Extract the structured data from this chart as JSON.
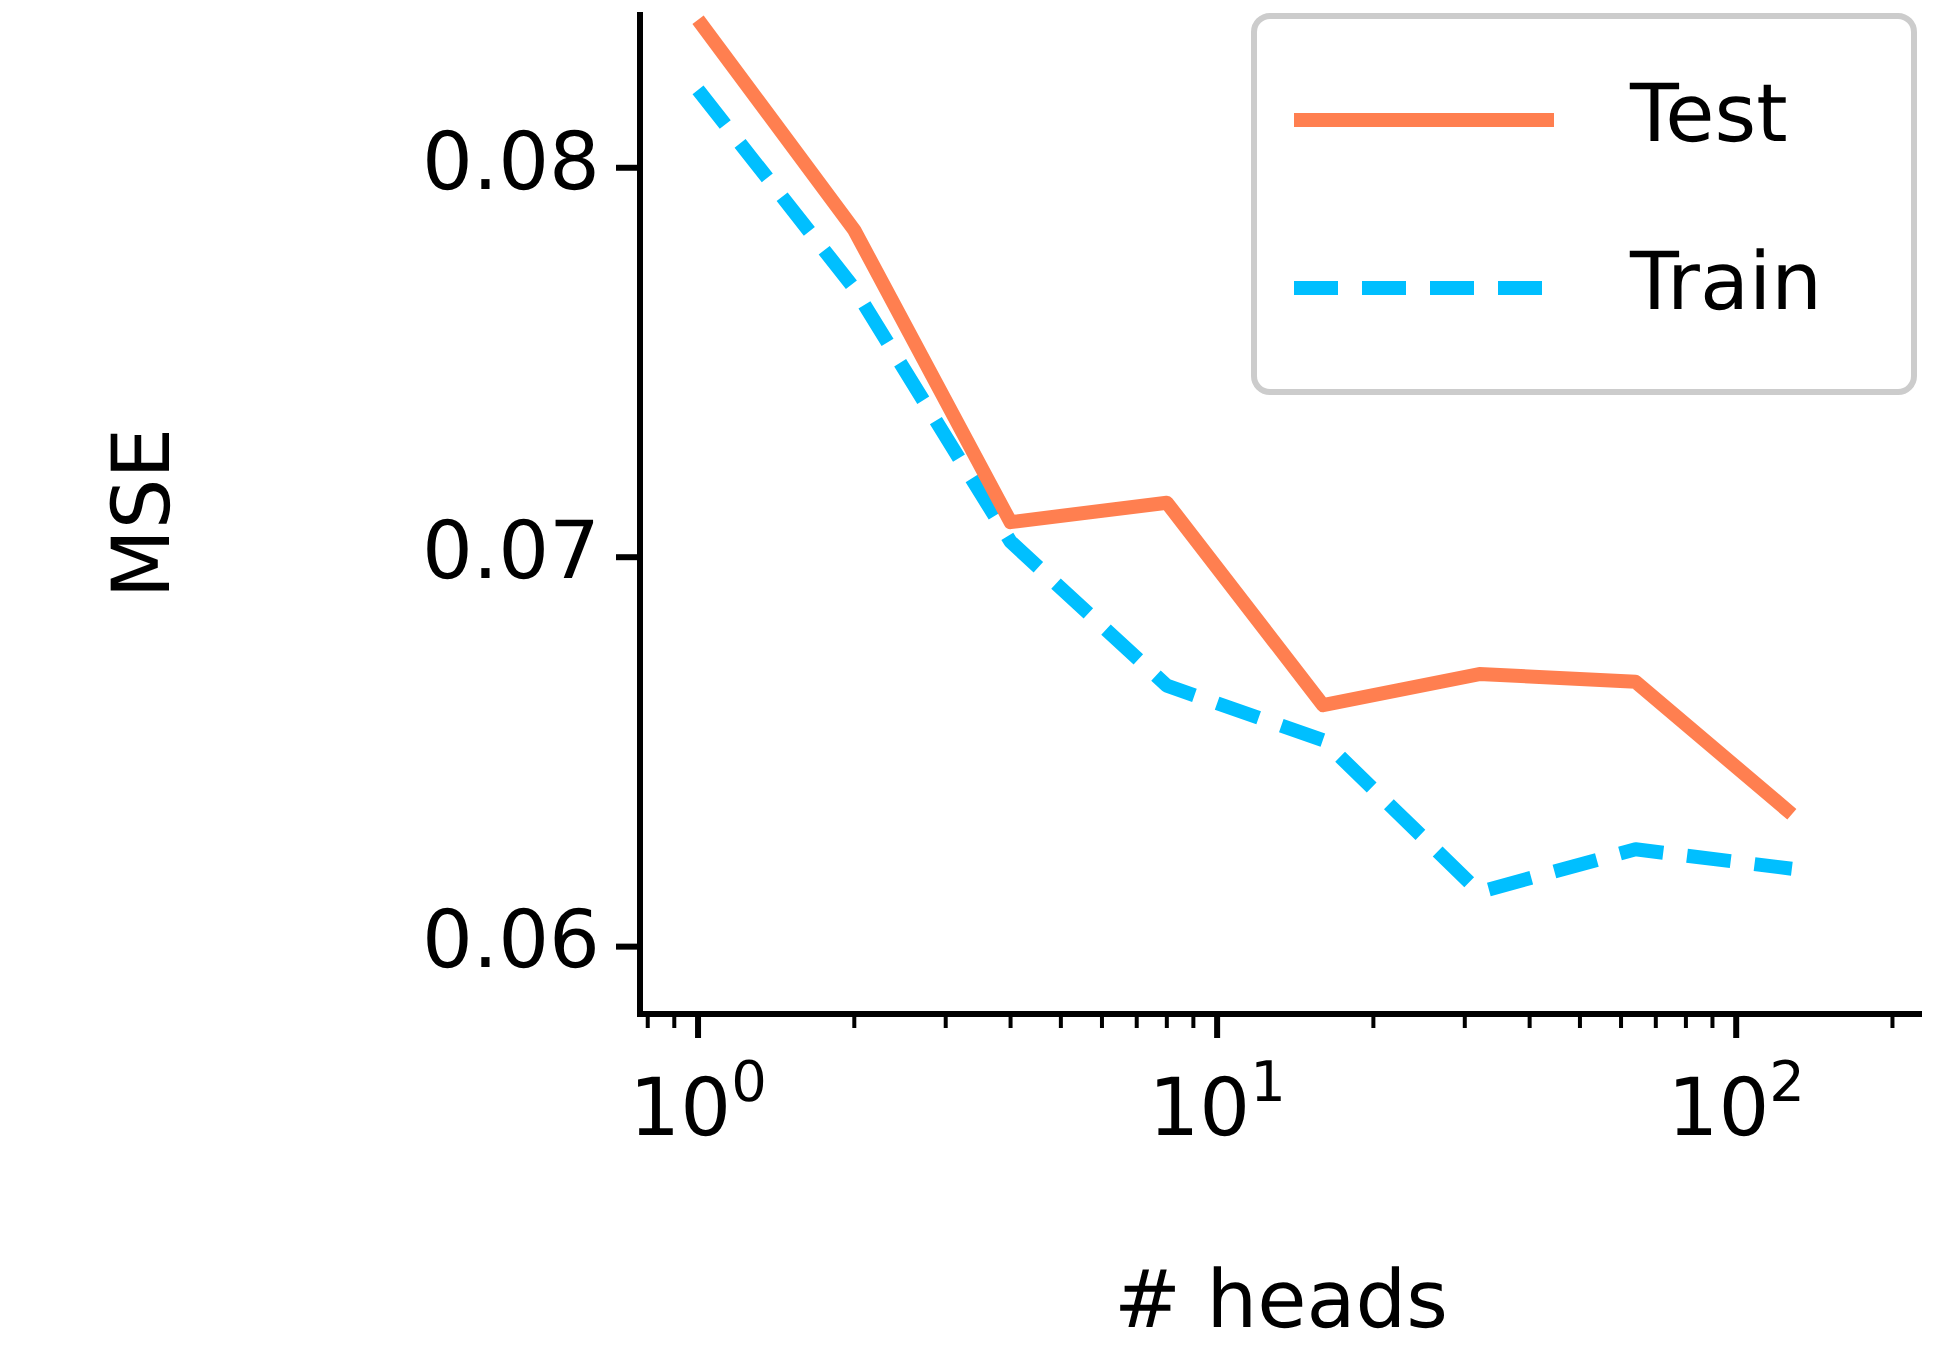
{
  "chart_data": {
    "type": "line",
    "xlabel": "# heads",
    "ylabel": "MSE",
    "x": [
      1,
      2,
      4,
      8,
      16,
      32,
      64,
      128
    ],
    "series": [
      {
        "name": "Test",
        "color": "#ff7f50",
        "line_style": "solid",
        "values": [
          0.0838,
          0.0784,
          0.0709,
          0.0714,
          0.0662,
          0.067,
          0.0668,
          0.0634
        ]
      },
      {
        "name": "Train",
        "color": "#00bfff",
        "line_style": "dashed",
        "values": [
          0.082,
          0.0769,
          0.0704,
          0.0667,
          0.0653,
          0.0614,
          0.0625,
          0.062
        ]
      }
    ],
    "log": "x",
    "xlim": [
      0.773,
      228
    ],
    "ylim": [
      0.05827,
      0.084
    ],
    "xticks": [
      {
        "value": 0.8,
        "label": null
      },
      {
        "value": 0.9,
        "label": null
      },
      {
        "value": 1,
        "label": "10$^{0}$"
      },
      {
        "value": 2,
        "label": null
      },
      {
        "value": 3,
        "label": null
      },
      {
        "value": 4,
        "label": null
      },
      {
        "value": 5,
        "label": null
      },
      {
        "value": 6,
        "label": null
      },
      {
        "value": 7,
        "label": null
      },
      {
        "value": 8,
        "label": null
      },
      {
        "value": 9,
        "label": null
      },
      {
        "value": 10,
        "label": "10$^{1}$"
      },
      {
        "value": 20,
        "label": null
      },
      {
        "value": 30,
        "label": null
      },
      {
        "value": 40,
        "label": null
      },
      {
        "value": 50,
        "label": null
      },
      {
        "value": 60,
        "label": null
      },
      {
        "value": 70,
        "label": null
      },
      {
        "value": 80,
        "label": null
      },
      {
        "value": 90,
        "label": null
      },
      {
        "value": 100,
        "label": "10$^{2}$"
      },
      {
        "value": 200,
        "label": null
      }
    ],
    "yticks": [
      0.06,
      0.07,
      0.08
    ],
    "grid": false,
    "legend": "top right",
    "marker": "none"
  }
}
